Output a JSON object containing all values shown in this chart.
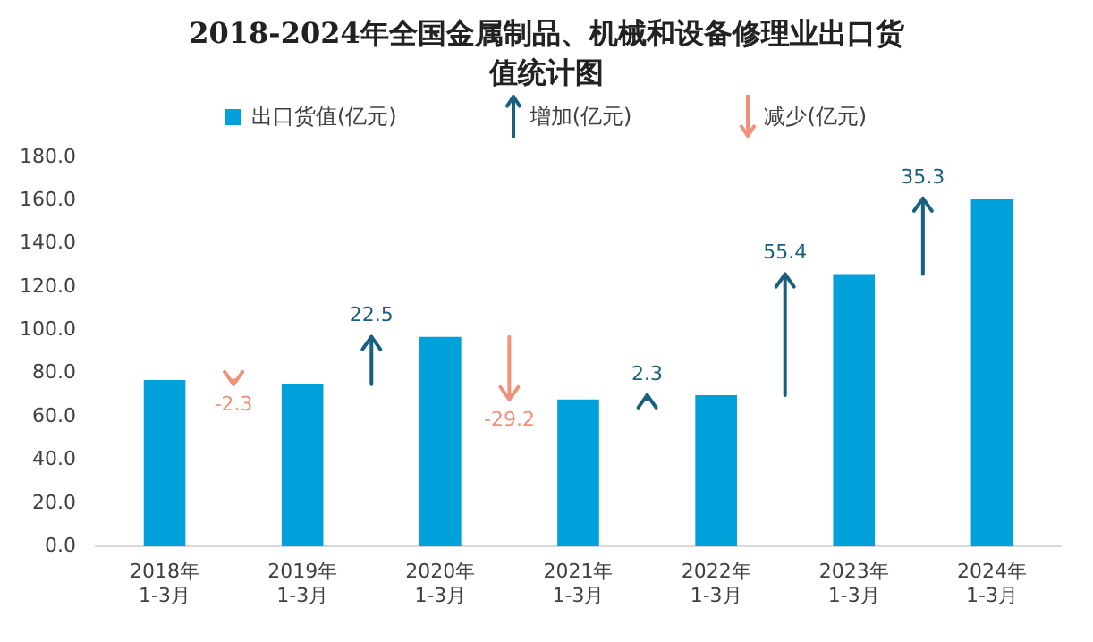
{
  "chart_data": {
    "type": "bar",
    "title": "2018-2024年全国金属制品、机械和设备修理业出口货值统计图",
    "categories": [
      "2018年\n1-3月",
      "2019年\n1-3月",
      "2020年\n1-3月",
      "2021年\n1-3月",
      "2022年\n1-3月",
      "2023年\n1-3月",
      "2024年\n1-3月"
    ],
    "series": [
      {
        "name": "出口货值(亿元)",
        "color": "#00a0da",
        "values": [
          77,
          75,
          97,
          68,
          70,
          126,
          161
        ]
      },
      {
        "name": "增加(亿元)",
        "type": "other",
        "color": "#19607f",
        "values": [
          null,
          null,
          null,
          null,
          null,
          null,
          null
        ]
      },
      {
        "name": "减少(亿元)",
        "type": "other",
        "color": "#f0917a",
        "values": [
          null,
          null,
          null,
          null,
          null,
          null,
          null
        ]
      }
    ],
    "annotations": [
      "-2.3",
      "22.5",
      "-29.2",
      "2.3",
      "55.4",
      "35.3"
    ],
    "ylim": [
      0,
      180
    ],
    "yticks": [
      {
        "value": 0,
        "label": "0.0"
      },
      {
        "value": 20,
        "label": "20.0"
      },
      {
        "value": 40,
        "label": "40.0"
      },
      {
        "value": 60,
        "label": "60.0"
      },
      {
        "value": 80,
        "label": "80.0"
      },
      {
        "value": 100,
        "label": "100.0"
      },
      {
        "value": 120,
        "label": "120.0"
      },
      {
        "value": 140,
        "label": "140.0"
      },
      {
        "value": 160,
        "label": "160.0"
      },
      {
        "value": 180,
        "label": "180.0"
      }
    ],
    "legend": "top",
    "grid": false
  }
}
